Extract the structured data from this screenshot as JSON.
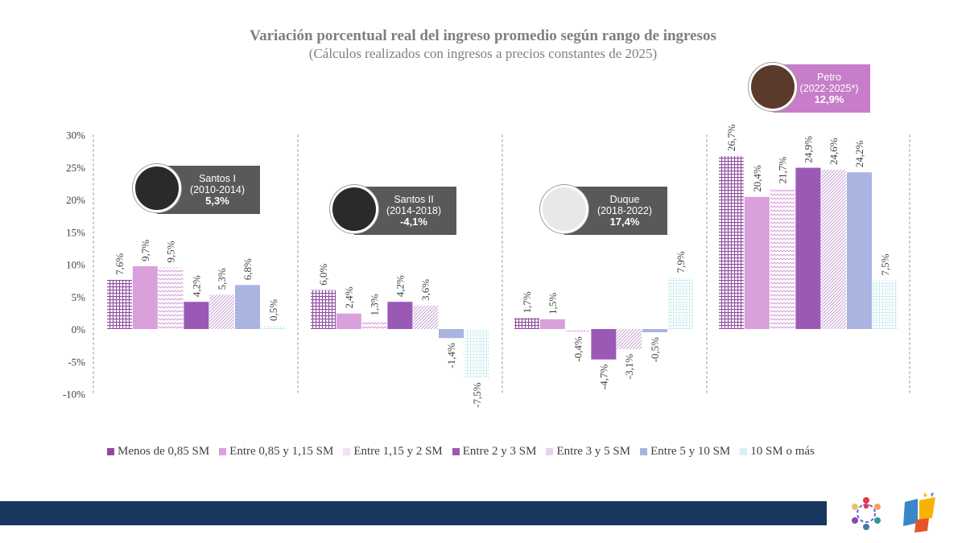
{
  "chart_data": {
    "type": "bar",
    "title": "Variación porcentual real del ingreso promedio según rango de ingresos",
    "subtitle": "(Cálculos realizados con ingresos a precios constantes de 2025)",
    "ylim": [
      -10,
      30
    ],
    "yticks": [
      "30%",
      "25%",
      "20%",
      "15%",
      "10%",
      "5%",
      "0%",
      "-5%",
      "-10%"
    ],
    "ytick_values": [
      30,
      25,
      20,
      15,
      10,
      5,
      0,
      -5,
      -10
    ],
    "categories": [
      "Santos I (2010-2014)",
      "Santos II (2014-2018)",
      "Duque (2018-2022)",
      "Petro (2022-2025*)"
    ],
    "series": [
      {
        "name": "Menos de 0,85 SM",
        "values": [
          7.6,
          6.0,
          1.7,
          26.7
        ],
        "labels": [
          "7,6%",
          "6,0%",
          "1,7%",
          "26,7%"
        ],
        "color": "#8e4b9e",
        "pattern": "grid"
      },
      {
        "name": "Entre 0,85 y 1,15 SM",
        "values": [
          9.7,
          2.4,
          1.5,
          20.4
        ],
        "labels": [
          "9,7%",
          "2,4%",
          "1,5%",
          "20,4%"
        ],
        "color": "#d9a0dc",
        "pattern": "solid"
      },
      {
        "name": "Entre 1,15 y 2 SM",
        "values": [
          9.5,
          1.3,
          -0.4,
          21.7
        ],
        "labels": [
          "9,5%",
          "1,3%",
          "-0,4%",
          "21,7%"
        ],
        "color": "#d9a0dc",
        "pattern": "zigzag"
      },
      {
        "name": "Entre 2 y 3 SM",
        "values": [
          4.2,
          4.2,
          -4.7,
          24.9
        ],
        "labels": [
          "4,2%",
          "4,2%",
          "-4,7%",
          "24,9%"
        ],
        "color": "#9b59b6",
        "pattern": "solid"
      },
      {
        "name": "Entre 3 y 5 SM",
        "values": [
          5.3,
          3.6,
          -3.1,
          24.6
        ],
        "labels": [
          "5,3%",
          "3,6%",
          "-3,1%",
          "24,6%"
        ],
        "color": "#c9a3d3",
        "pattern": "diag"
      },
      {
        "name": "Entre 5 y 10 SM",
        "values": [
          6.8,
          -1.4,
          -0.5,
          24.2
        ],
        "labels": [
          "6,8%",
          "-1,4%",
          "-0,5%",
          "24,2%"
        ],
        "color": "#a9b4e0",
        "pattern": "solid"
      },
      {
        "name": "10 SM o más",
        "values": [
          0.5,
          -7.5,
          7.9,
          7.5
        ],
        "labels": [
          "0,5%",
          "-7,5%",
          "7,9%",
          "7,5%"
        ],
        "color": "#9ad9e0",
        "pattern": "dots"
      }
    ],
    "callouts": [
      {
        "name": "Santos I",
        "period": "(2010-2014)",
        "value": "5,3%",
        "color": "#595959"
      },
      {
        "name": "Santos II",
        "period": "(2014-2018)",
        "value": "-4,1%",
        "color": "#595959"
      },
      {
        "name": "Duque",
        "period": "(2018-2022)",
        "value": "17,4%",
        "color": "#595959"
      },
      {
        "name": "Petro",
        "period": "(2022-2025*)",
        "value": "12,9%",
        "color": "#c77dc9"
      }
    ]
  },
  "colors": {
    "footer_bar": "#17375e",
    "axis_text": "#404040",
    "title_text": "#7f7f7f"
  }
}
